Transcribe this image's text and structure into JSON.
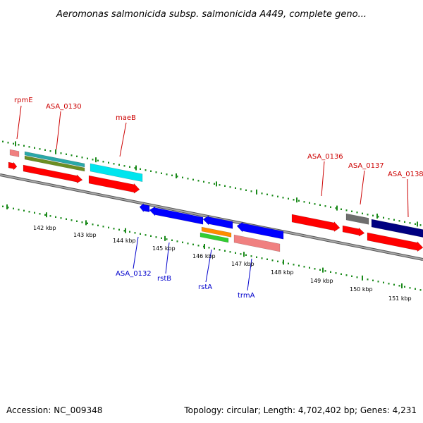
{
  "title": "Aeromonas salmonicida subsp. salmonicida A449, complete geno...",
  "footer": {
    "accession": "Accession: NC_009348",
    "summary": "Topology: circular; Length: 4,702,402 bp; Genes: 4,231"
  },
  "colors": {
    "backbone": "#7a7a7a",
    "ticks": "#1a8a1a",
    "label_top": "#cc0000",
    "label_bottom": "#0000cc"
  },
  "kbp_labels": [
    "142 kbp",
    "143 kbp",
    "144 kbp",
    "145 kbp",
    "146 kbp",
    "147 kbp",
    "148 kbp",
    "149 kbp",
    "150 kbp",
    "151 kbp"
  ],
  "top_labels": [
    "rpmE",
    "ASA_0130",
    "maeB",
    "ASA_0136",
    "ASA_0137",
    "ASA_0138"
  ],
  "bottom_labels": [
    "ASA_0132",
    "rstB",
    "rstA",
    "trmA"
  ],
  "feature_colors": {
    "red": "#ff0000",
    "pink": "#f08080",
    "cyan": "#00e5ee",
    "teal": "#2aa8a8",
    "olive": "#6b8e23",
    "blue": "#0000ff",
    "orange": "#ff8c00",
    "green": "#32cd32",
    "gray": "#696969",
    "navy": "#000080"
  }
}
